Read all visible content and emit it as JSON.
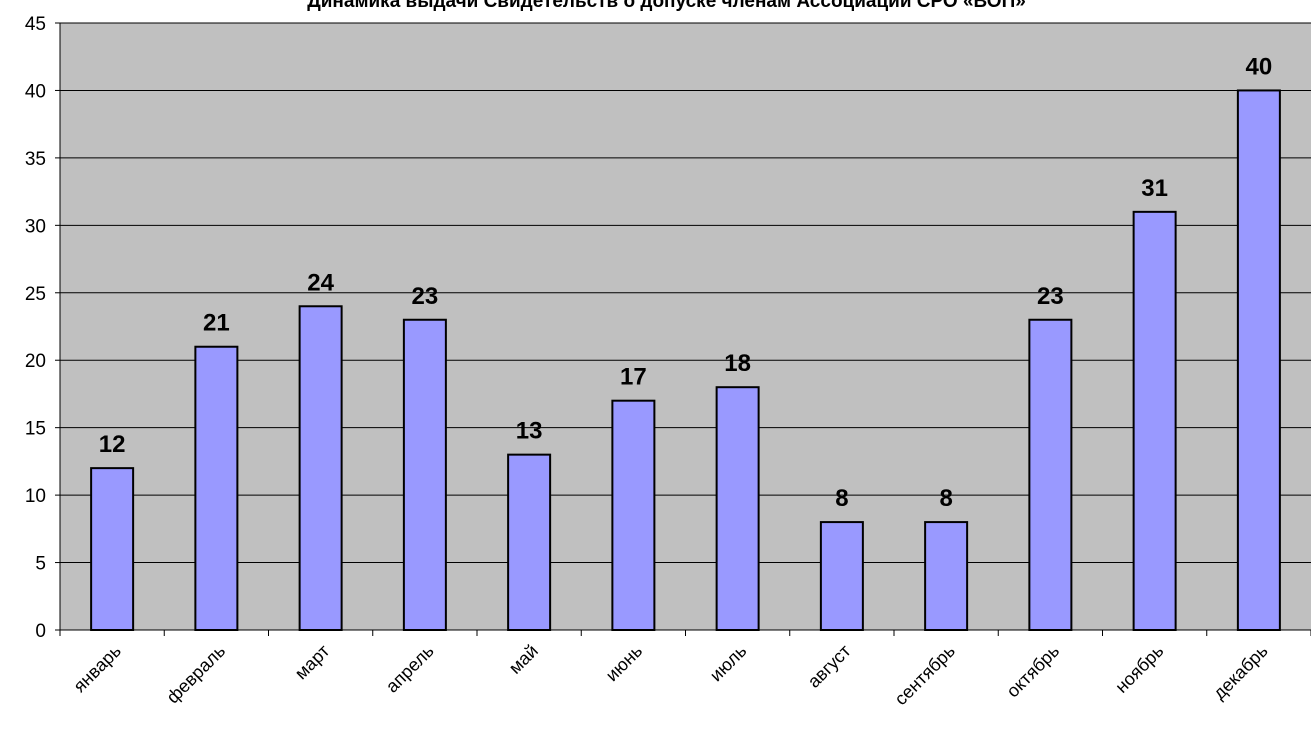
{
  "chart_data": {
    "type": "bar",
    "title": "Динамика выдачи Свидетельств о допуске членам Ассоциации СРО «ВОП»",
    "xlabel": "",
    "ylabel": "",
    "categories": [
      "январь",
      "февраль",
      "март",
      "апрель",
      "май",
      "июнь",
      "июль",
      "август",
      "сентябрь",
      "октябрь",
      "ноябрь",
      "декабрь"
    ],
    "values": [
      12,
      21,
      24,
      23,
      13,
      17,
      18,
      8,
      8,
      23,
      31,
      40
    ],
    "ylim": [
      0,
      45
    ],
    "yticks": [
      0,
      5,
      10,
      15,
      20,
      25,
      30,
      35,
      40,
      45
    ],
    "grid": true,
    "legend": "none",
    "data_labels": true,
    "colors": {
      "bar_fill": "#9999ff",
      "bar_stroke": "#000000",
      "plot_background": "#c0c0c0",
      "gridline": "#000000"
    }
  }
}
